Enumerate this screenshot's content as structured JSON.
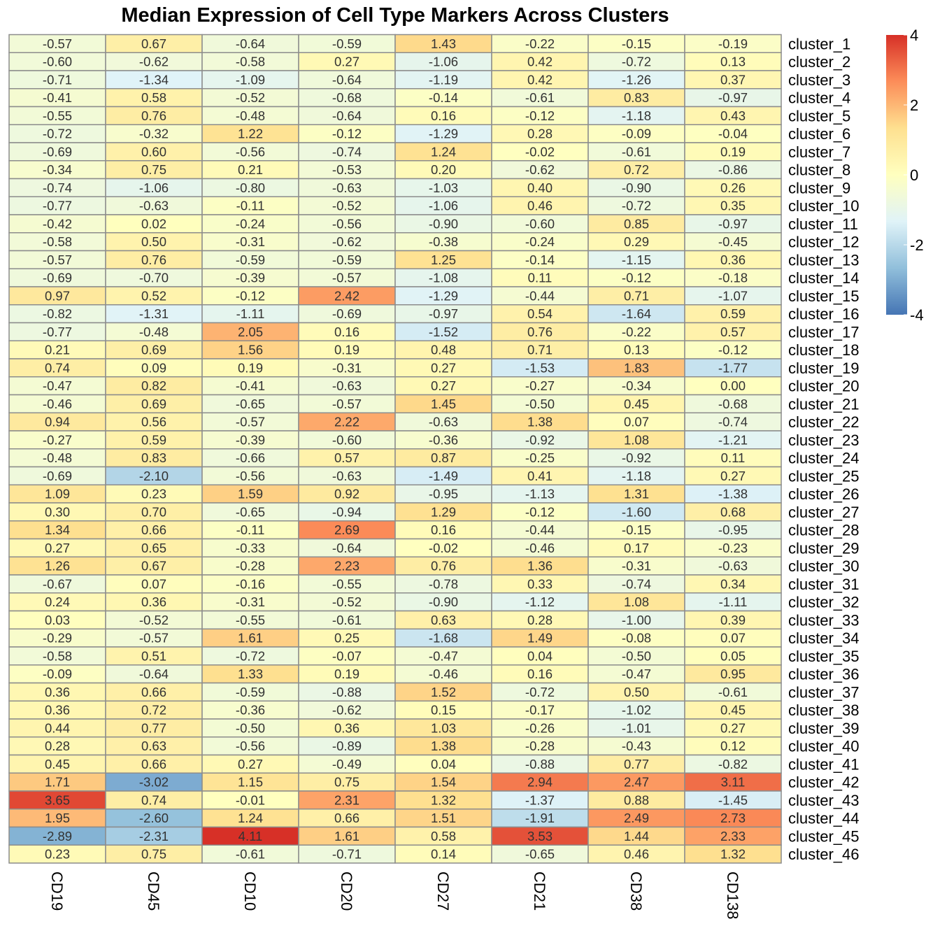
{
  "chart_data": {
    "type": "heatmap",
    "title": "Median Expression of Cell Type Markers Across Clusters",
    "columns": [
      "CD19",
      "CD45",
      "CD10",
      "CD20",
      "CD27",
      "CD21",
      "CD38",
      "CD138"
    ],
    "rows": [
      "cluster_1",
      "cluster_2",
      "cluster_3",
      "cluster_4",
      "cluster_5",
      "cluster_6",
      "cluster_7",
      "cluster_8",
      "cluster_9",
      "cluster_10",
      "cluster_11",
      "cluster_12",
      "cluster_13",
      "cluster_14",
      "cluster_15",
      "cluster_16",
      "cluster_17",
      "cluster_18",
      "cluster_19",
      "cluster_20",
      "cluster_21",
      "cluster_22",
      "cluster_23",
      "cluster_24",
      "cluster_25",
      "cluster_26",
      "cluster_27",
      "cluster_28",
      "cluster_29",
      "cluster_30",
      "cluster_31",
      "cluster_32",
      "cluster_33",
      "cluster_34",
      "cluster_35",
      "cluster_36",
      "cluster_37",
      "cluster_38",
      "cluster_39",
      "cluster_40",
      "cluster_41",
      "cluster_42",
      "cluster_43",
      "cluster_44",
      "cluster_45",
      "cluster_46"
    ],
    "values": [
      [
        "-0.57",
        "0.67",
        "-0.64",
        "-0.59",
        "1.43",
        "-0.22",
        "-0.15",
        "-0.19"
      ],
      [
        "-0.60",
        "-0.62",
        "-0.58",
        "0.27",
        "-1.06",
        "0.42",
        "-0.72",
        "0.13"
      ],
      [
        "-0.71",
        "-1.34",
        "-1.09",
        "-0.64",
        "-1.19",
        "0.42",
        "-1.26",
        "0.37"
      ],
      [
        "-0.41",
        "0.58",
        "-0.52",
        "-0.68",
        "-0.14",
        "-0.61",
        "0.83",
        "-0.97"
      ],
      [
        "-0.55",
        "0.76",
        "-0.48",
        "-0.64",
        "0.16",
        "-0.12",
        "-1.18",
        "0.43"
      ],
      [
        "-0.72",
        "-0.32",
        "1.22",
        "-0.12",
        "-1.29",
        "0.28",
        "-0.09",
        "-0.04"
      ],
      [
        "-0.69",
        "0.60",
        "-0.56",
        "-0.74",
        "1.24",
        "-0.02",
        "-0.61",
        "0.19"
      ],
      [
        "-0.34",
        "0.75",
        "0.21",
        "-0.53",
        "0.20",
        "-0.62",
        "0.72",
        "-0.86"
      ],
      [
        "-0.74",
        "-1.06",
        "-0.80",
        "-0.63",
        "-1.03",
        "0.40",
        "-0.90",
        "0.26"
      ],
      [
        "-0.77",
        "-0.63",
        "-0.11",
        "-0.52",
        "-1.06",
        "0.46",
        "-0.72",
        "0.35"
      ],
      [
        "-0.42",
        "0.02",
        "-0.24",
        "-0.56",
        "-0.90",
        "-0.60",
        "0.85",
        "-0.97"
      ],
      [
        "-0.58",
        "0.50",
        "-0.31",
        "-0.62",
        "-0.38",
        "-0.24",
        "0.29",
        "-0.45"
      ],
      [
        "-0.57",
        "0.76",
        "-0.59",
        "-0.59",
        "1.25",
        "-0.14",
        "-1.15",
        "0.36"
      ],
      [
        "-0.69",
        "-0.70",
        "-0.39",
        "-0.57",
        "-1.08",
        "0.11",
        "-0.12",
        "-0.18"
      ],
      [
        "0.97",
        "0.52",
        "-0.12",
        "2.42",
        "-1.29",
        "-0.44",
        "0.71",
        "-1.07"
      ],
      [
        "-0.82",
        "-1.31",
        "-1.11",
        "-0.69",
        "-0.97",
        "0.54",
        "-1.64",
        "0.59"
      ],
      [
        "-0.77",
        "-0.48",
        "2.05",
        "0.16",
        "-1.52",
        "0.76",
        "-0.22",
        "0.57"
      ],
      [
        "0.21",
        "0.69",
        "1.56",
        "0.19",
        "0.48",
        "0.71",
        "0.13",
        "-0.12"
      ],
      [
        "0.74",
        "0.09",
        "0.19",
        "-0.31",
        "0.27",
        "-1.53",
        "1.83",
        "-1.77"
      ],
      [
        "-0.47",
        "0.82",
        "-0.41",
        "-0.63",
        "0.27",
        "-0.27",
        "-0.34",
        "0.00"
      ],
      [
        "-0.46",
        "0.69",
        "-0.65",
        "-0.57",
        "1.45",
        "-0.50",
        "0.45",
        "-0.68"
      ],
      [
        "0.94",
        "0.56",
        "-0.57",
        "2.22",
        "-0.63",
        "1.38",
        "0.07",
        "-0.74"
      ],
      [
        "-0.27",
        "0.59",
        "-0.39",
        "-0.60",
        "-0.36",
        "-0.92",
        "1.08",
        "-1.21"
      ],
      [
        "-0.48",
        "0.83",
        "-0.66",
        "0.57",
        "0.87",
        "-0.25",
        "-0.92",
        "0.11"
      ],
      [
        "-0.69",
        "-2.10",
        "-0.56",
        "-0.63",
        "-1.49",
        "0.41",
        "-1.18",
        "0.27"
      ],
      [
        "1.09",
        "0.23",
        "1.59",
        "0.92",
        "-0.95",
        "-1.13",
        "1.31",
        "-1.38"
      ],
      [
        "0.30",
        "0.70",
        "-0.65",
        "-0.94",
        "1.29",
        "-0.12",
        "-1.60",
        "0.68"
      ],
      [
        "1.34",
        "0.66",
        "-0.11",
        "2.69",
        "0.16",
        "-0.44",
        "-0.15",
        "-0.95"
      ],
      [
        "0.27",
        "0.65",
        "-0.33",
        "-0.64",
        "-0.02",
        "-0.46",
        "0.17",
        "-0.23"
      ],
      [
        "1.26",
        "0.67",
        "-0.28",
        "2.23",
        "0.76",
        "1.36",
        "-0.31",
        "-0.63"
      ],
      [
        "-0.67",
        "0.07",
        "-0.16",
        "-0.55",
        "-0.78",
        "0.33",
        "-0.74",
        "0.34"
      ],
      [
        "0.24",
        "0.36",
        "-0.31",
        "-0.52",
        "-0.90",
        "-1.12",
        "1.08",
        "-1.11"
      ],
      [
        "0.03",
        "-0.52",
        "-0.55",
        "-0.61",
        "0.63",
        "0.28",
        "-1.00",
        "0.39"
      ],
      [
        "-0.29",
        "-0.57",
        "1.61",
        "0.25",
        "-1.68",
        "1.49",
        "-0.08",
        "0.07"
      ],
      [
        "-0.58",
        "0.51",
        "-0.72",
        "-0.07",
        "-0.47",
        "0.04",
        "-0.50",
        "0.05"
      ],
      [
        "-0.09",
        "-0.64",
        "1.33",
        "0.19",
        "-0.46",
        "0.16",
        "-0.47",
        "0.95"
      ],
      [
        "0.36",
        "0.66",
        "-0.59",
        "-0.88",
        "1.52",
        "-0.72",
        "0.50",
        "-0.61"
      ],
      [
        "0.36",
        "0.72",
        "-0.36",
        "-0.62",
        "0.15",
        "-0.17",
        "-1.02",
        "0.45"
      ],
      [
        "0.44",
        "0.77",
        "-0.50",
        "0.36",
        "1.03",
        "-0.26",
        "-1.01",
        "0.27"
      ],
      [
        "0.28",
        "0.63",
        "-0.56",
        "-0.89",
        "1.38",
        "-0.28",
        "-0.43",
        "0.12"
      ],
      [
        "0.45",
        "0.66",
        "0.27",
        "-0.49",
        "0.04",
        "-0.88",
        "0.77",
        "-0.82"
      ],
      [
        "1.71",
        "-3.02",
        "1.15",
        "0.75",
        "1.54",
        "2.94",
        "2.47",
        "3.11"
      ],
      [
        "3.65",
        "0.74",
        "-0.01",
        "2.31",
        "1.32",
        "-1.37",
        "0.88",
        "-1.45"
      ],
      [
        "1.95",
        "-2.60",
        "1.24",
        "0.66",
        "1.51",
        "-1.91",
        "2.49",
        "2.73"
      ],
      [
        "-2.89",
        "-2.31",
        "4.11",
        "1.61",
        "0.58",
        "3.53",
        "1.44",
        "2.33"
      ],
      [
        "0.23",
        "0.75",
        "-0.61",
        "-0.71",
        "0.14",
        "-0.65",
        "0.46",
        "1.32"
      ]
    ],
    "color_scale": {
      "min": -4,
      "max": 4,
      "ticks": [
        "4",
        "2",
        "0",
        "-2",
        "-4"
      ],
      "colors": [
        "#4575b4",
        "#91bfdb",
        "#e0f3f8",
        "#ffffbf",
        "#fee090",
        "#fc8d59",
        "#d73027"
      ]
    },
    "cell_border_color": "#8c8c8c",
    "legend_position": "right"
  }
}
